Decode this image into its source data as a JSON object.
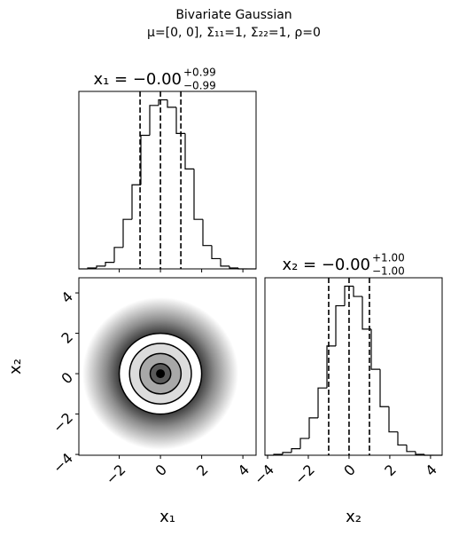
{
  "title": "Bivariate Gaussian",
  "subtitle": "μ=[0, 0], Σ₁₁=1, Σ₂₂=1, ρ=0",
  "chart_data": [
    {
      "type": "histogram",
      "title": "x₁ = −0.00",
      "title_upper": "+0.99",
      "title_lower": "−0.99",
      "bins": [
        -3.96,
        -3.53,
        -3.1,
        -2.67,
        -2.24,
        -1.81,
        -1.38,
        -0.95,
        -0.52,
        -0.09,
        0.34,
        0.77,
        1.2,
        1.63,
        2.06,
        2.49,
        2.92,
        3.35,
        3.78,
        4.21,
        4.64
      ],
      "counts": [
        0,
        1,
        3,
        7,
        23,
        53,
        90,
        143,
        175,
        181,
        173,
        145,
        107,
        53,
        25,
        11,
        3,
        1,
        0,
        0
      ],
      "quantiles": [
        -0.99,
        0,
        0.99
      ],
      "xlim": [
        -3.96,
        4.64
      ],
      "ylim": [
        0,
        190
      ],
      "color": "#000000"
    },
    {
      "type": "contour2d",
      "xlabel": "x₁",
      "ylabel": "x₂",
      "xlim": [
        -3.96,
        4.64
      ],
      "ylim": [
        -4.04,
        4.75
      ],
      "xticks": [
        {
          "value": -2,
          "label": "−2"
        },
        0,
        2,
        4
      ],
      "yticks": [
        {
          "value": -4,
          "label": "−4"
        },
        {
          "value": -2,
          "label": "−2"
        },
        0,
        2,
        4
      ],
      "center": [
        0,
        0
      ],
      "contour_levels_sigma": [
        0.5,
        1,
        1.5,
        2
      ],
      "color": "#000000"
    },
    {
      "type": "histogram",
      "title": "x₂ = −0.00",
      "title_upper": "+1.00",
      "title_lower": "−1.00",
      "xlabel": "x₂",
      "bins": [
        -4.13,
        -3.695,
        -3.26,
        -2.825,
        -2.39,
        -1.955,
        -1.52,
        -1.085,
        -0.65,
        -0.215,
        0.22,
        0.655,
        1.09,
        1.525,
        1.96,
        2.395,
        2.83,
        3.265,
        3.7,
        4.135,
        4.57
      ],
      "counts": [
        0,
        1,
        3,
        7,
        18,
        40,
        72,
        117,
        160,
        181,
        170,
        135,
        92,
        52,
        25,
        11,
        4,
        1,
        0,
        0
      ],
      "quantiles": [
        -1.0,
        0,
        1.0
      ],
      "xlim": [
        -4.13,
        4.57
      ],
      "ylim": [
        0,
        190
      ],
      "xticks": [
        {
          "value": -4,
          "label": "−4"
        },
        {
          "value": -2,
          "label": "−2"
        },
        0,
        2,
        4
      ],
      "color": "#000000"
    }
  ]
}
